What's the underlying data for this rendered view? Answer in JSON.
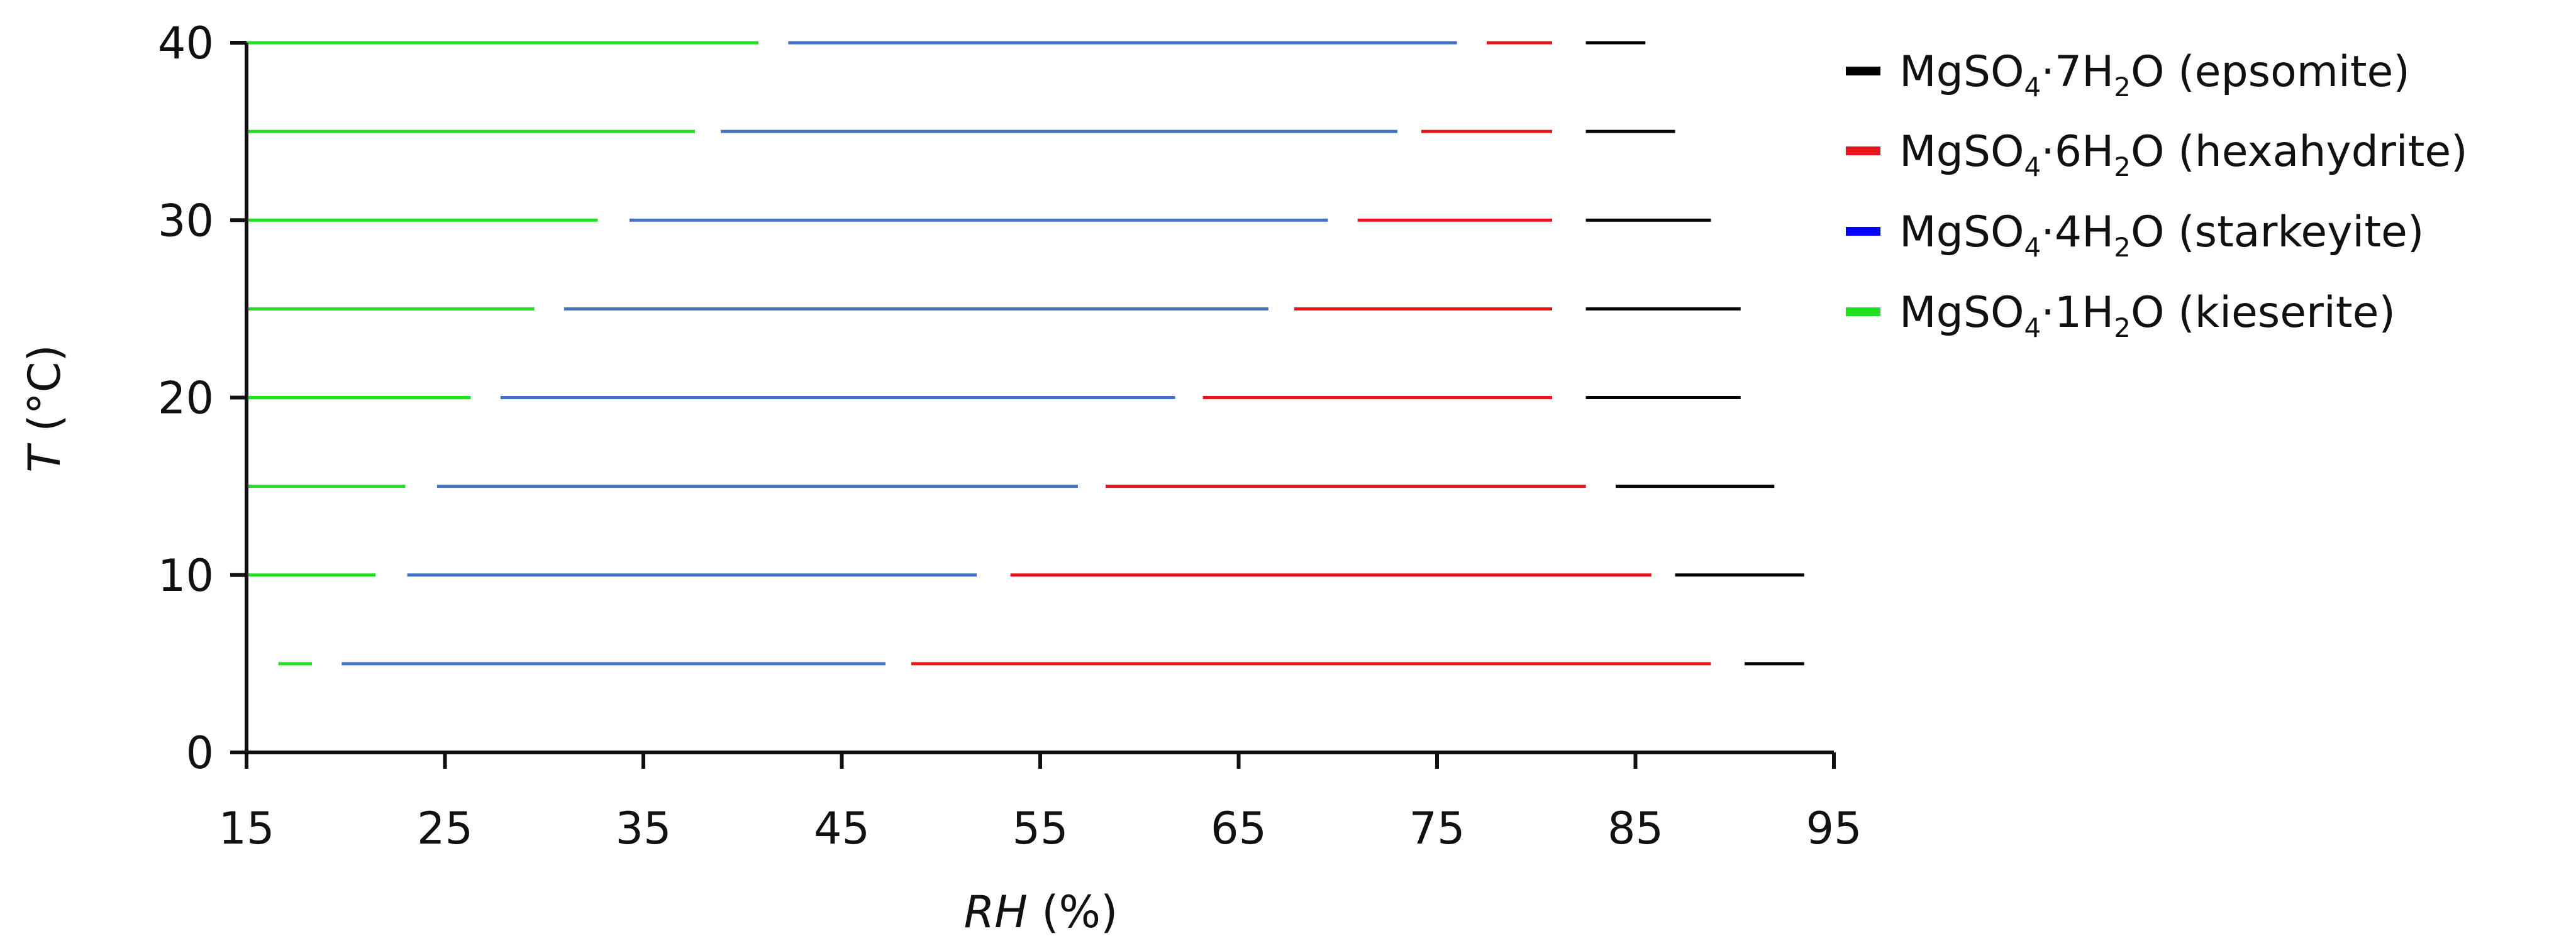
{
  "chart_data": {
    "type": "line",
    "xlabel": "RH (%)",
    "ylabel": "T (°C)",
    "xlim": [
      15,
      95
    ],
    "ylim": [
      0,
      40
    ],
    "xticks": [
      15,
      25,
      35,
      45,
      55,
      65,
      75,
      85,
      95
    ],
    "yticks": [
      0,
      10,
      20,
      30,
      40
    ],
    "legend_position": "top-right",
    "series": [
      {
        "name": "MgSO4·7H2O (epsomite)",
        "legend": {
          "main": "MgSO",
          "sub1": "4",
          "mid": "·7H",
          "sub2": "2",
          "tail": "O (epsomite)"
        },
        "color": "#000000",
        "segments": [
          {
            "t": 40,
            "rh": [
              82.5,
              85.5
            ]
          },
          {
            "t": 35,
            "rh": [
              82.5,
              87.0
            ]
          },
          {
            "t": 30,
            "rh": [
              82.5,
              88.8
            ]
          },
          {
            "t": 25,
            "rh": [
              82.5,
              90.3
            ]
          },
          {
            "t": 20,
            "rh": [
              82.5,
              90.3
            ]
          },
          {
            "t": 15,
            "rh": [
              84.0,
              92.0
            ]
          },
          {
            "t": 10,
            "rh": [
              87.0,
              93.5
            ]
          },
          {
            "t": 5,
            "rh": [
              90.5,
              93.5
            ]
          }
        ]
      },
      {
        "name": "MgSO4·6H2O (hexahydrite)",
        "legend": {
          "main": "MgSO",
          "sub1": "4",
          "mid": "·6H",
          "sub2": "2",
          "tail": "O (hexahydrite)"
        },
        "color": "#e8141b",
        "segments": [
          {
            "t": 40,
            "rh": [
              77.5,
              80.8
            ]
          },
          {
            "t": 35,
            "rh": [
              74.2,
              80.8
            ]
          },
          {
            "t": 30,
            "rh": [
              71.0,
              80.8
            ]
          },
          {
            "t": 25,
            "rh": [
              67.8,
              80.8
            ]
          },
          {
            "t": 20,
            "rh": [
              63.2,
              80.8
            ]
          },
          {
            "t": 15,
            "rh": [
              58.3,
              82.5
            ]
          },
          {
            "t": 10,
            "rh": [
              53.5,
              85.8
            ]
          },
          {
            "t": 5,
            "rh": [
              48.5,
              88.8
            ]
          }
        ]
      },
      {
        "name": "MgSO4·4H2O (starkeyite)",
        "legend": {
          "main": "MgSO",
          "sub1": "4",
          "mid": "·4H",
          "sub2": "2",
          "tail": "O (starkeyite)"
        },
        "legend_color": "#0000ff",
        "color": "#4472c4",
        "segments": [
          {
            "t": 40,
            "rh": [
              42.3,
              76.0
            ]
          },
          {
            "t": 35,
            "rh": [
              38.9,
              73.0
            ]
          },
          {
            "t": 30,
            "rh": [
              34.3,
              69.5
            ]
          },
          {
            "t": 25,
            "rh": [
              31.0,
              66.5
            ]
          },
          {
            "t": 20,
            "rh": [
              27.8,
              61.8
            ]
          },
          {
            "t": 15,
            "rh": [
              24.6,
              56.9
            ]
          },
          {
            "t": 10,
            "rh": [
              23.1,
              51.8
            ]
          },
          {
            "t": 5,
            "rh": [
              19.8,
              47.2
            ]
          }
        ]
      },
      {
        "name": "MgSO4·1H2O (kieserite)",
        "legend": {
          "main": "MgSO",
          "sub1": "4",
          "mid": "·1H",
          "sub2": "2",
          "tail": "O (kieserite)"
        },
        "color": "#21e021",
        "segments": [
          {
            "t": 40,
            "rh": [
              15.0,
              40.8
            ]
          },
          {
            "t": 35,
            "rh": [
              15.0,
              37.6
            ]
          },
          {
            "t": 30,
            "rh": [
              15.0,
              32.7
            ]
          },
          {
            "t": 25,
            "rh": [
              15.0,
              29.5
            ]
          },
          {
            "t": 20,
            "rh": [
              15.0,
              26.3
            ]
          },
          {
            "t": 15,
            "rh": [
              15.0,
              23.0
            ]
          },
          {
            "t": 10,
            "rh": [
              15.0,
              21.5
            ]
          },
          {
            "t": 5,
            "rh": [
              16.6,
              18.3
            ]
          }
        ]
      }
    ]
  }
}
